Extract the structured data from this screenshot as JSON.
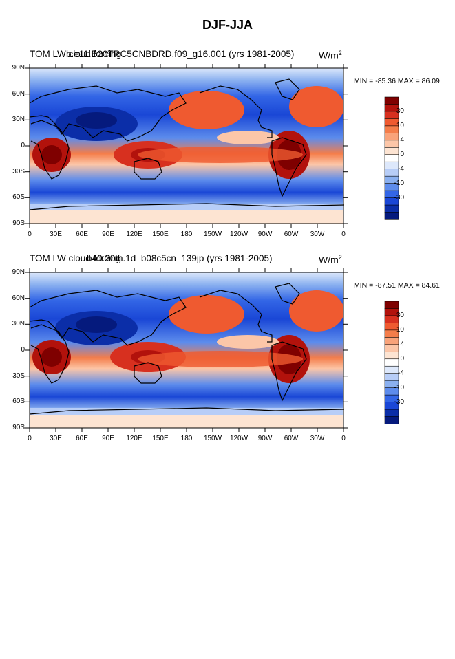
{
  "title": "DJF-JJA",
  "units": {
    "base": "W/m",
    "exp": "2"
  },
  "panels": [
    {
      "label_main": "TOM LW cloud forcing",
      "label_case": "b.e11.B20TRC5CNBDRD.f09_g16.001 (yrs 1981-2005)",
      "minmax": "MIN = -85.36 MAX =  86.09"
    },
    {
      "label_main": "TOM LW cloud forcing",
      "label_case": "b40.20th.1d_b08c5cn_139jp (yrs 1981-2005)",
      "minmax": "MIN = -87.51 MAX =  84.61"
    }
  ],
  "lat_labels": [
    "90N",
    "60N",
    "30N",
    "0",
    "30S",
    "60S",
    "90S"
  ],
  "lon_labels": [
    "0",
    "30E",
    "60E",
    "90E",
    "120E",
    "150E",
    "180",
    "150W",
    "120W",
    "90W",
    "60W",
    "30W",
    "0"
  ],
  "colorbar": {
    "colors": [
      "#7f0000",
      "#b2120c",
      "#d7301f",
      "#ef5a30",
      "#f47d4a",
      "#f9a37a",
      "#fcc6a8",
      "#fde4d2",
      "#ffffff",
      "#dde8fb",
      "#b7cdf7",
      "#8ab0f0",
      "#5d8cec",
      "#3366e6",
      "#1a47d6",
      "#0b2ea8",
      "#051a7d"
    ],
    "labels": [
      "30",
      "10",
      "4",
      "0",
      "-4",
      "-10",
      "-30"
    ],
    "contour_levels": [
      -40,
      -30,
      -20,
      -10,
      -4,
      -2,
      0,
      2,
      4,
      10,
      20,
      30,
      40
    ]
  }
}
